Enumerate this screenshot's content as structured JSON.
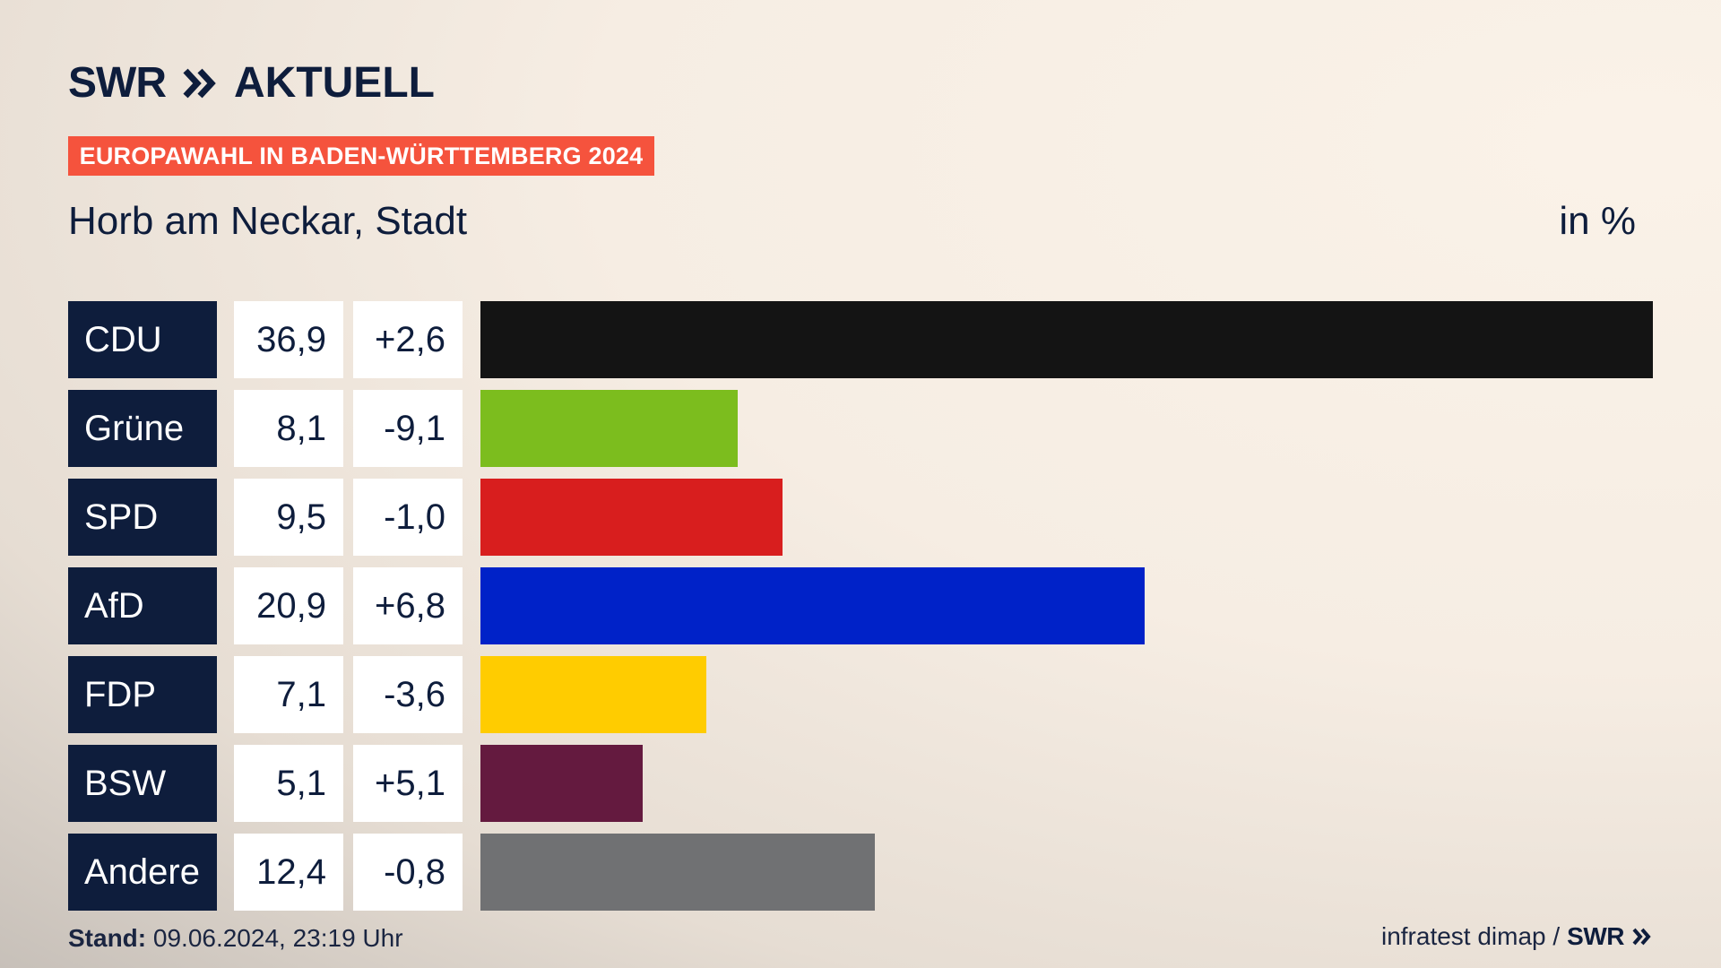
{
  "logo": {
    "brand": "SWR",
    "product": "AKTUELL"
  },
  "badge": "EUROPAWAHL IN BADEN-WÜRTTEMBERG 2024",
  "place": "Horb am Neckar, Stadt",
  "unit": "in %",
  "footer": {
    "stand_label": "Stand:",
    "stand_value": "09.06.2024, 23:19 Uhr",
    "source": "infratest dimap /",
    "brand": "SWR"
  },
  "colors": {
    "navy": "#0e1d3c",
    "badge": "#f5533d"
  },
  "chart_data": {
    "type": "bar",
    "orientation": "horizontal",
    "categories": [
      "CDU",
      "Grüne",
      "SPD",
      "AfD",
      "FDP",
      "BSW",
      "Andere"
    ],
    "values": [
      36.9,
      8.1,
      9.5,
      20.9,
      7.1,
      5.1,
      12.4
    ],
    "value_labels": [
      "36,9",
      "8,1",
      "9,5",
      "20,9",
      "7,1",
      "5,1",
      "12,4"
    ],
    "diff_labels": [
      "+2,6",
      "-9,1",
      "-1,0",
      "+6,8",
      "-3,6",
      "+5,1",
      "-0,8"
    ],
    "colors": [
      "#141414",
      "#7cbd1e",
      "#d81e1e",
      "#0022c8",
      "#ffcc00",
      "#641a3f",
      "#707173"
    ],
    "xlim": [
      0,
      36.9
    ]
  }
}
